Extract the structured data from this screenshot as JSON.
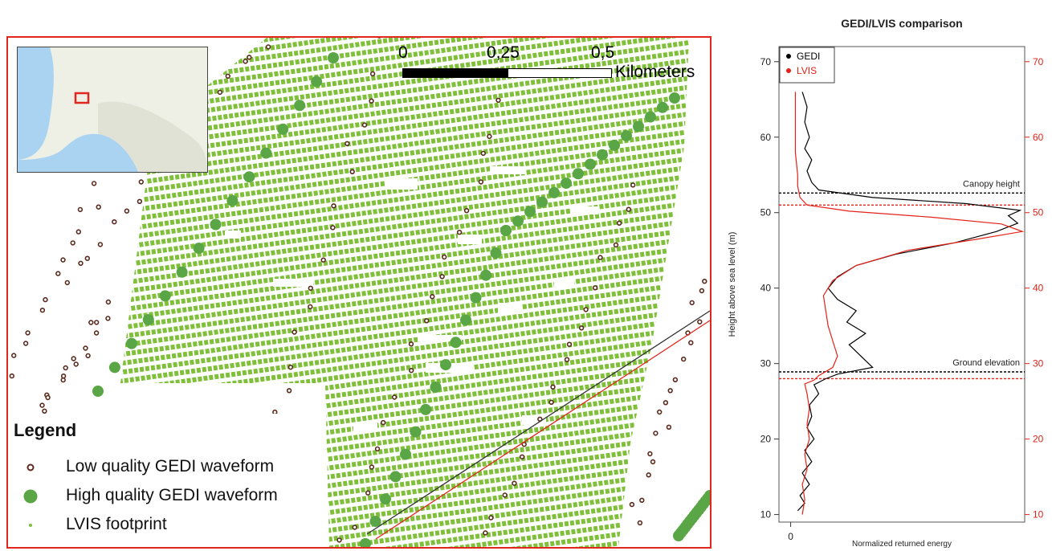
{
  "map": {
    "scale_bar": {
      "ticks": [
        "0",
        "0,25",
        "0,5"
      ],
      "unit": "Kilometers"
    },
    "legend": {
      "title": "Legend",
      "items": [
        {
          "label": "Low quality GEDI waveform",
          "symbol": "small-ring",
          "color": "#5a2a1e"
        },
        {
          "label": "High quality GEDI waveform",
          "symbol": "large-dot",
          "color": "#5aa646"
        },
        {
          "label": "LVIS footprint",
          "symbol": "tiny-dot",
          "color": "#7fbf3a"
        }
      ]
    },
    "colors": {
      "frame": "#e0261d",
      "lvis": "#7fbf3a",
      "gedi_high": "#5aa646",
      "gedi_low": "#5a2a1e",
      "inset_water": "#aad3f2",
      "inset_land": "#eef0e6"
    }
  },
  "chart_data": {
    "type": "line",
    "title": "GEDI/LVIS comparison",
    "xlabel": "Normalized returned energy",
    "ylabel": "Height above sea level (m)",
    "ylim": [
      9,
      72
    ],
    "xlim": [
      -0.05,
      1.0
    ],
    "x_ticks": [
      "0"
    ],
    "y_ticks_left": [
      10,
      20,
      30,
      40,
      50,
      60,
      70
    ],
    "y_ticks_right": [
      10,
      20,
      30,
      40,
      50,
      60,
      70
    ],
    "legend_position": "top-left",
    "series": [
      {
        "name": "GEDI",
        "color": "#000000",
        "points": [
          [
            0.03,
            10.5
          ],
          [
            0.06,
            11.5
          ],
          [
            0.04,
            12.5
          ],
          [
            0.08,
            14
          ],
          [
            0.05,
            15.5
          ],
          [
            0.09,
            17
          ],
          [
            0.06,
            18.5
          ],
          [
            0.1,
            20
          ],
          [
            0.07,
            21.5
          ],
          [
            0.09,
            23
          ],
          [
            0.08,
            24.5
          ],
          [
            0.12,
            26
          ],
          [
            0.1,
            27.2
          ],
          [
            0.15,
            28
          ],
          [
            0.2,
            28.6
          ],
          [
            0.35,
            29.5
          ],
          [
            0.3,
            31
          ],
          [
            0.25,
            32.5
          ],
          [
            0.32,
            34
          ],
          [
            0.24,
            35.5
          ],
          [
            0.28,
            37
          ],
          [
            0.2,
            38.5
          ],
          [
            0.16,
            40
          ],
          [
            0.2,
            41.5
          ],
          [
            0.28,
            43
          ],
          [
            0.45,
            44.5
          ],
          [
            0.7,
            46
          ],
          [
            0.88,
            47.5
          ],
          [
            0.97,
            48.6
          ],
          [
            0.93,
            49.6
          ],
          [
            0.98,
            50.3
          ],
          [
            0.75,
            51.2
          ],
          [
            0.35,
            52
          ],
          [
            0.12,
            53
          ],
          [
            0.09,
            54
          ],
          [
            0.07,
            55.5
          ],
          [
            0.09,
            57
          ],
          [
            0.06,
            58.5
          ],
          [
            0.08,
            60
          ],
          [
            0.06,
            62
          ],
          [
            0.07,
            64
          ],
          [
            0.05,
            66
          ]
        ]
      },
      {
        "name": "LVIS",
        "color": "#e32219",
        "points": [
          [
            0.05,
            10
          ],
          [
            0.06,
            12
          ],
          [
            0.05,
            14
          ],
          [
            0.07,
            16
          ],
          [
            0.06,
            18
          ],
          [
            0.08,
            20
          ],
          [
            0.07,
            22
          ],
          [
            0.08,
            24
          ],
          [
            0.07,
            26
          ],
          [
            0.06,
            27.3
          ],
          [
            0.1,
            27.8
          ],
          [
            0.12,
            28.4
          ],
          [
            0.18,
            29.5
          ],
          [
            0.2,
            31
          ],
          [
            0.18,
            33
          ],
          [
            0.16,
            35
          ],
          [
            0.15,
            37
          ],
          [
            0.14,
            39
          ],
          [
            0.18,
            41
          ],
          [
            0.28,
            43
          ],
          [
            0.5,
            45
          ],
          [
            0.8,
            46.5
          ],
          [
            0.99,
            47.5
          ],
          [
            0.9,
            48.5
          ],
          [
            0.6,
            49.4
          ],
          [
            0.25,
            50.2
          ],
          [
            0.07,
            51
          ],
          [
            0.04,
            52
          ],
          [
            0.03,
            53.5
          ],
          [
            0.03,
            55
          ],
          [
            0.02,
            58
          ],
          [
            0.02,
            62
          ],
          [
            0.02,
            66
          ]
        ]
      }
    ],
    "reference_lines": [
      {
        "label": "Canopy height",
        "y": 52.6,
        "color": "#000000"
      },
      {
        "label": "",
        "y": 51.0,
        "color": "#e32219"
      },
      {
        "label": "Ground elevation",
        "y": 28.9,
        "color": "#000000"
      },
      {
        "label": "",
        "y": 28.0,
        "color": "#e32219"
      }
    ]
  }
}
